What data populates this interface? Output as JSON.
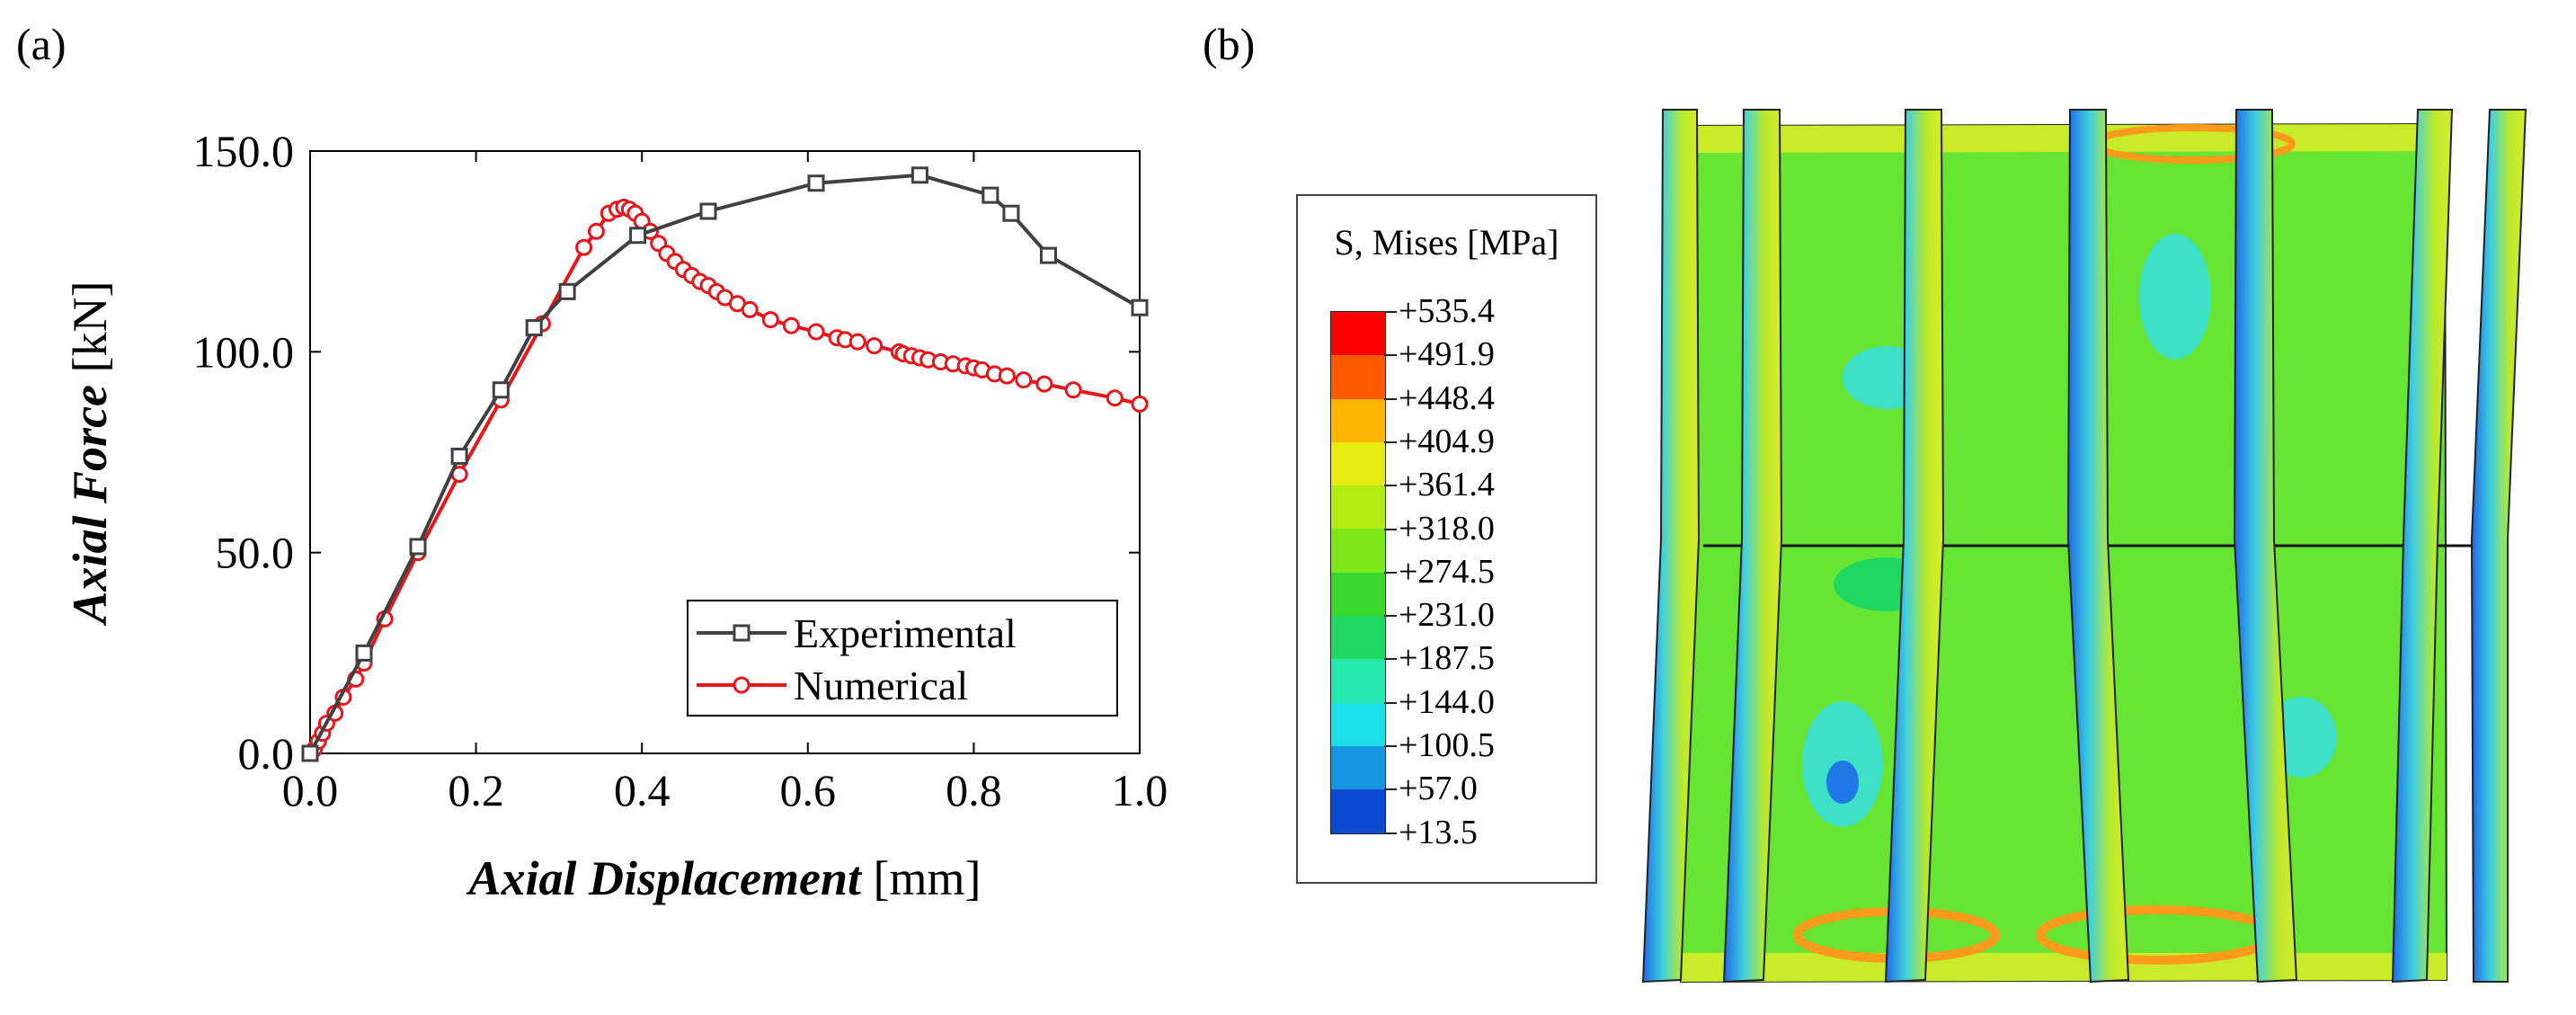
{
  "panels": {
    "a_label": "(a)",
    "b_label": "(b)"
  },
  "chart_data": {
    "type": "line",
    "xlabel": "Axial Displacement",
    "xlabel_unit": "[mm]",
    "ylabel": "Axial Force",
    "ylabel_unit": "[kN]",
    "xlim": [
      0.0,
      1.0
    ],
    "ylim": [
      0.0,
      150.0
    ],
    "xticks": [
      "0.0",
      "0.2",
      "0.4",
      "0.6",
      "0.8",
      "1.0"
    ],
    "yticks": [
      "0.0",
      "50.0",
      "100.0",
      "150.0"
    ],
    "legend_position": "bottom-right",
    "series": [
      {
        "name": "Experimental",
        "color": "#404040",
        "marker": "square",
        "x": [
          0.0,
          0.065,
          0.13,
          0.18,
          0.23,
          0.27,
          0.31,
          0.395,
          0.48,
          0.61,
          0.735,
          0.82,
          0.845,
          0.89,
          1.0
        ],
        "y": [
          0.0,
          25.0,
          51.5,
          74.0,
          90.5,
          106.0,
          115.0,
          129.0,
          135.0,
          142.0,
          144.0,
          139.0,
          134.5,
          124.0,
          111.0
        ]
      },
      {
        "name": "Numerical",
        "color": "#e8161c",
        "marker": "circle",
        "x": [
          0.0,
          0.005,
          0.01,
          0.015,
          0.02,
          0.03,
          0.04,
          0.055,
          0.065,
          0.09,
          0.13,
          0.18,
          0.23,
          0.28,
          0.33,
          0.345,
          0.36,
          0.37,
          0.378,
          0.385,
          0.392,
          0.4,
          0.41,
          0.42,
          0.43,
          0.44,
          0.45,
          0.46,
          0.47,
          0.48,
          0.49,
          0.5,
          0.515,
          0.53,
          0.555,
          0.58,
          0.61,
          0.635,
          0.645,
          0.66,
          0.68,
          0.71,
          0.715,
          0.725,
          0.735,
          0.745,
          0.76,
          0.775,
          0.79,
          0.8,
          0.81,
          0.825,
          0.84,
          0.86,
          0.885,
          0.92,
          0.97,
          1.0
        ],
        "y": [
          0.0,
          1.0,
          3.0,
          5.0,
          7.5,
          10.0,
          14.0,
          18.5,
          22.5,
          33.5,
          50.0,
          69.5,
          88.0,
          107.0,
          126.0,
          130.0,
          134.5,
          135.5,
          136.0,
          135.5,
          134.5,
          132.5,
          130.0,
          127.0,
          124.5,
          122.5,
          120.5,
          119.0,
          117.5,
          116.5,
          115.0,
          113.5,
          112.0,
          110.5,
          108.0,
          106.5,
          105.0,
          103.5,
          103.0,
          102.5,
          101.5,
          100.0,
          99.5,
          99.0,
          98.5,
          98.0,
          97.5,
          97.0,
          96.5,
          96.0,
          95.5,
          94.5,
          94.0,
          93.0,
          92.0,
          90.5,
          88.5,
          87.0
        ]
      }
    ]
  },
  "contour_legend": {
    "title": "S, Mises [MPa]",
    "levels": [
      "+535.4",
      "+491.9",
      "+448.4",
      "+404.9",
      "+361.4",
      "+318.0",
      "+274.5",
      "+231.0",
      "+187.5",
      "+144.0",
      "+100.5",
      "+57.0",
      "+13.5"
    ],
    "colors": [
      "#ff0000",
      "#ff5a00",
      "#ffb400",
      "#e6ec10",
      "#b4ee10",
      "#7ce81a",
      "#38d82a",
      "#1ed860",
      "#22e8b0",
      "#1ce0e8",
      "#1496e0",
      "#0a4ad0",
      "#0010e8"
    ]
  },
  "fea_colors": {
    "outline": "#222222",
    "main_green": "#66e633",
    "yellow_green": "#c8ec28",
    "cyan": "#3fe0c8",
    "blue": "#1e78e6",
    "orange": "#ff9a1a",
    "red": "#f02818"
  }
}
